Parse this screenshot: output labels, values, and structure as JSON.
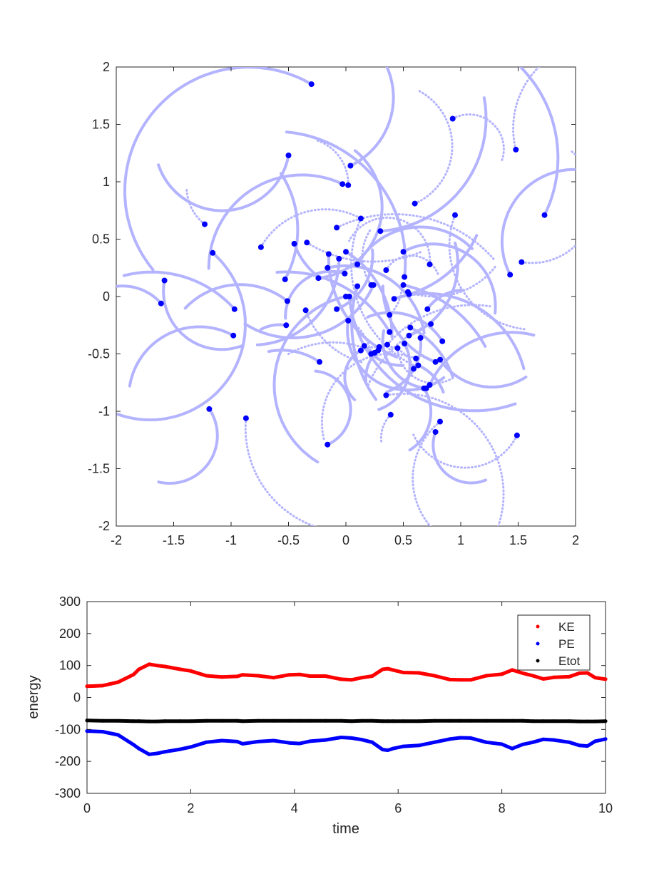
{
  "chart_data": [
    {
      "type": "scatter",
      "xlim": [
        -2,
        2
      ],
      "ylim": [
        -2,
        2
      ],
      "xticks": [
        "-2",
        "-1.5",
        "-1",
        "-0.5",
        "0",
        "0.5",
        "1",
        "1.5",
        "2"
      ],
      "yticks": [
        "-2",
        "-1.5",
        "-1",
        "-0.5",
        "0",
        "0.5",
        "1",
        "1.5",
        "2"
      ],
      "grid": false,
      "trail_color": "#b3b3ff",
      "point_color": "#0000ff",
      "points": [
        [
          -0.3,
          1.85
        ],
        [
          0.93,
          1.55
        ],
        [
          1.48,
          1.28
        ],
        [
          -0.5,
          1.23
        ],
        [
          0.04,
          1.14
        ],
        [
          -0.03,
          0.98
        ],
        [
          0.02,
          0.97
        ],
        [
          0.6,
          0.81
        ],
        [
          0.95,
          0.71
        ],
        [
          1.73,
          0.71
        ],
        [
          0.13,
          0.68
        ],
        [
          -1.23,
          0.63
        ],
        [
          -0.08,
          0.6
        ],
        [
          0.3,
          0.57
        ],
        [
          -0.45,
          0.46
        ],
        [
          -0.34,
          0.47
        ],
        [
          -0.74,
          0.43
        ],
        [
          -1.16,
          0.38
        ],
        [
          0.5,
          0.39
        ],
        [
          -0.15,
          0.37
        ],
        [
          -0.06,
          0.33
        ],
        [
          0.0,
          0.39
        ],
        [
          0.1,
          0.28
        ],
        [
          0.73,
          0.28
        ],
        [
          1.53,
          0.3
        ],
        [
          -0.16,
          0.25
        ],
        [
          0.35,
          0.23
        ],
        [
          -0.01,
          0.2
        ],
        [
          1.43,
          0.19
        ],
        [
          0.51,
          0.17
        ],
        [
          -0.53,
          0.15
        ],
        [
          -1.58,
          0.14
        ],
        [
          -0.24,
          0.16
        ],
        [
          0.22,
          0.1
        ],
        [
          0.24,
          0.1
        ],
        [
          0.1,
          0.09
        ],
        [
          0.5,
          0.1
        ],
        [
          0.54,
          0.04
        ],
        [
          0.55,
          0.02
        ],
        [
          0.0,
          0.0
        ],
        [
          0.03,
          0.0
        ],
        [
          -0.51,
          -0.04
        ],
        [
          -1.61,
          -0.06
        ],
        [
          0.42,
          -0.02
        ],
        [
          -0.97,
          -0.11
        ],
        [
          -0.08,
          -0.11
        ],
        [
          -0.35,
          -0.12
        ],
        [
          0.71,
          -0.11
        ],
        [
          0.38,
          -0.16
        ],
        [
          0.02,
          -0.21
        ],
        [
          -0.52,
          -0.25
        ],
        [
          0.74,
          -0.24
        ],
        [
          0.56,
          -0.27
        ],
        [
          -0.98,
          -0.34
        ],
        [
          0.38,
          -0.31
        ],
        [
          0.55,
          -0.34
        ],
        [
          0.65,
          -0.36
        ],
        [
          0.84,
          -0.39
        ],
        [
          0.51,
          -0.41
        ],
        [
          0.16,
          -0.43
        ],
        [
          0.29,
          -0.44
        ],
        [
          0.36,
          -0.42
        ],
        [
          0.13,
          -0.47
        ],
        [
          0.28,
          -0.47
        ],
        [
          0.45,
          -0.45
        ],
        [
          0.25,
          -0.49
        ],
        [
          0.22,
          -0.5
        ],
        [
          0.61,
          -0.54
        ],
        [
          0.82,
          -0.55
        ],
        [
          -0.23,
          -0.57
        ],
        [
          0.78,
          -0.57
        ],
        [
          0.63,
          -0.6
        ],
        [
          0.59,
          -0.63
        ],
        [
          0.7,
          -0.8
        ],
        [
          0.73,
          -0.77
        ],
        [
          0.68,
          -0.8
        ],
        [
          0.35,
          -0.86
        ],
        [
          -1.19,
          -0.98
        ],
        [
          0.39,
          -1.03
        ],
        [
          -0.87,
          -1.06
        ],
        [
          0.82,
          -1.09
        ],
        [
          0.78,
          -1.18
        ],
        [
          1.49,
          -1.21
        ],
        [
          -0.16,
          -1.29
        ]
      ]
    },
    {
      "type": "line",
      "xlabel": "time",
      "ylabel": "energy",
      "xlim": [
        0,
        10
      ],
      "ylim": [
        -300,
        300
      ],
      "xticks": [
        "0",
        "2",
        "4",
        "6",
        "8",
        "10"
      ],
      "yticks": [
        "300",
        "200",
        "100",
        "0",
        "-100",
        "-200",
        "-300"
      ],
      "grid": false,
      "legend_position": "top-right",
      "x": [
        0,
        0.3,
        0.6,
        0.9,
        1.0,
        1.2,
        1.35,
        1.5,
        1.8,
        2.0,
        2.3,
        2.6,
        2.9,
        3.0,
        3.3,
        3.6,
        3.9,
        4.1,
        4.3,
        4.6,
        4.9,
        5.1,
        5.3,
        5.5,
        5.7,
        5.8,
        5.9,
        6.1,
        6.4,
        6.7,
        7.0,
        7.2,
        7.4,
        7.7,
        8.0,
        8.2,
        8.4,
        8.6,
        8.8,
        9.0,
        9.3,
        9.5,
        9.65,
        9.8,
        10.0
      ],
      "series": [
        {
          "name": "KE",
          "color": "#ff0000",
          "values": [
            35,
            37,
            48,
            72,
            88,
            104,
            100,
            97,
            88,
            83,
            68,
            64,
            66,
            71,
            68,
            62,
            71,
            72,
            67,
            67,
            57,
            55,
            62,
            67,
            88,
            90,
            86,
            78,
            77,
            68,
            56,
            55,
            55,
            68,
            73,
            86,
            76,
            68,
            58,
            63,
            65,
            76,
            77,
            62,
            57
          ]
        },
        {
          "name": "PE",
          "color": "#0000ff",
          "values": [
            -105,
            -107,
            -117,
            -148,
            -160,
            -178,
            -175,
            -170,
            -162,
            -155,
            -140,
            -135,
            -138,
            -145,
            -138,
            -135,
            -142,
            -144,
            -137,
            -133,
            -125,
            -127,
            -132,
            -140,
            -163,
            -165,
            -160,
            -153,
            -150,
            -140,
            -130,
            -126,
            -127,
            -140,
            -146,
            -160,
            -147,
            -140,
            -131,
            -133,
            -140,
            -150,
            -152,
            -137,
            -130
          ]
        },
        {
          "name": "Etot",
          "color": "#000000",
          "values": [
            -72,
            -73,
            -73,
            -74,
            -74,
            -75,
            -75,
            -74,
            -74,
            -74,
            -73,
            -73,
            -73,
            -74,
            -73,
            -73,
            -73,
            -73,
            -73,
            -73,
            -73,
            -74,
            -73,
            -73,
            -74,
            -74,
            -74,
            -74,
            -74,
            -73,
            -73,
            -73,
            -73,
            -73,
            -73,
            -73,
            -73,
            -74,
            -74,
            -74,
            -74,
            -75,
            -75,
            -75,
            -74
          ]
        }
      ]
    }
  ]
}
